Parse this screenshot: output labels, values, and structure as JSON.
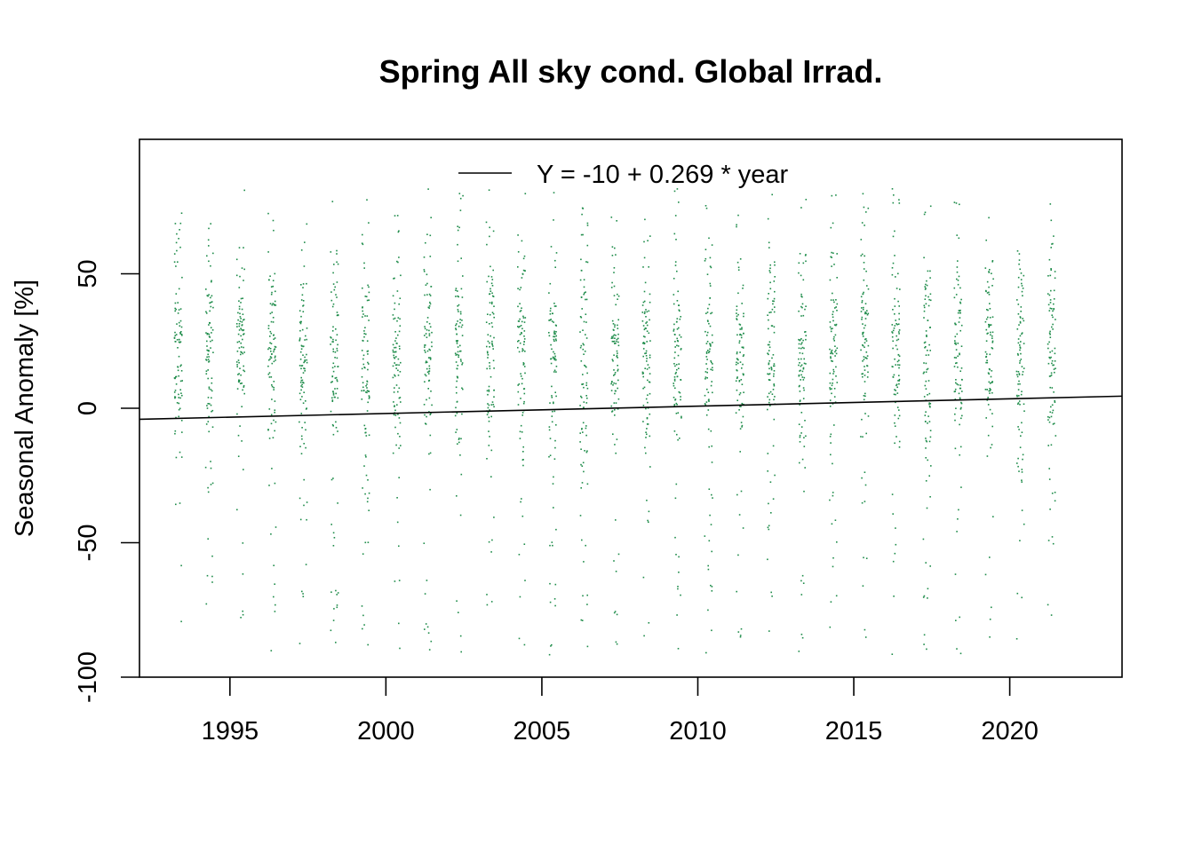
{
  "chart_data": {
    "type": "scatter",
    "title": "Spring All sky cond. Global Irrad.",
    "xlabel": "",
    "ylabel": "Seasonal Anomaly [%]",
    "xlim": [
      1992.1,
      2023.6
    ],
    "ylim": [
      -100,
      100
    ],
    "x_ticks": [
      1995,
      2000,
      2005,
      2010,
      2015,
      2020
    ],
    "y_ticks": [
      -100,
      -50,
      0,
      50
    ],
    "grid": false,
    "legend": {
      "position": "top",
      "entries": [
        {
          "label": "Y = -10 + 0.269 * year",
          "style": "line",
          "color": "#000000"
        }
      ]
    },
    "point_color": "#1e8c4a",
    "years": [
      1993,
      1994,
      1995,
      1996,
      1997,
      1998,
      1999,
      2000,
      2001,
      2002,
      2003,
      2004,
      2005,
      2006,
      2007,
      2008,
      2009,
      2010,
      2011,
      2012,
      2013,
      2014,
      2015,
      2016,
      2017,
      2018,
      2019,
      2020,
      2021
    ],
    "season_span_years": 0.25,
    "points_per_season": 92,
    "anomaly_range": [
      -92,
      82
    ],
    "fit_line": {
      "x": [
        1992.1,
        2023.6
      ],
      "y": [
        -4.1,
        4.5
      ],
      "color": "#000000"
    }
  }
}
